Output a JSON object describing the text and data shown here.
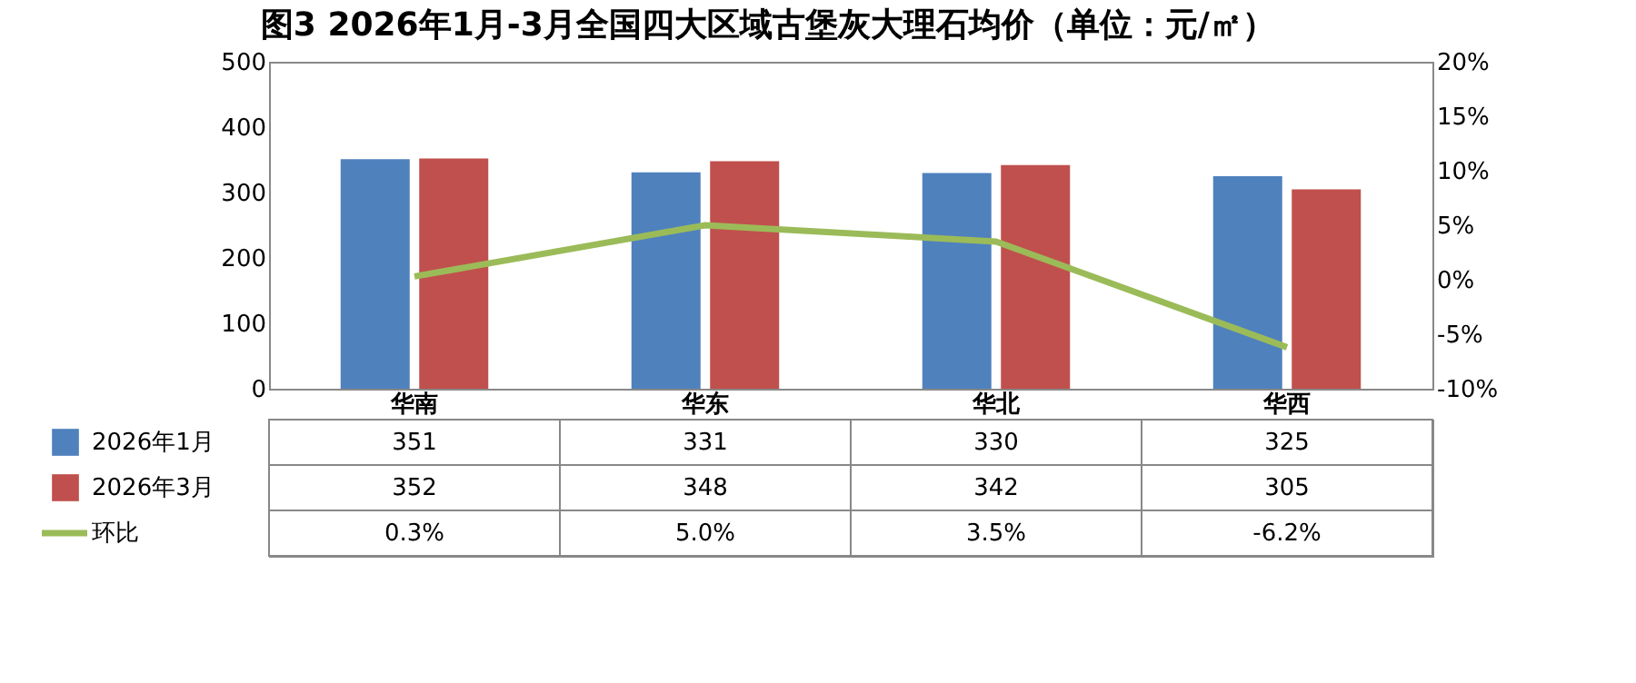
{
  "chart_data": {
    "type": "bar",
    "title": "图3 2026年1月-3月全国四大区域古堡灰大理石均价（单位：元/㎡）",
    "categories": [
      "华南",
      "华东",
      "华北",
      "华西"
    ],
    "series": [
      {
        "name": "2026年1月",
        "color": "#4f81bd",
        "values": [
          351,
          331,
          330,
          325
        ],
        "value_labels": [
          "351",
          "331",
          "330",
          "325"
        ]
      },
      {
        "name": "2026年3月",
        "color": "#c0504d",
        "values": [
          352,
          348,
          342,
          305
        ],
        "value_labels": [
          "352",
          "348",
          "342",
          "305"
        ]
      },
      {
        "name": "环比",
        "type": "line",
        "axis": "y2",
        "color": "#9bbb59",
        "values": [
          0.3,
          5.0,
          3.5,
          -6.2
        ],
        "value_labels": [
          "0.3%",
          "5.0%",
          "3.5%",
          "-6.2%"
        ]
      }
    ],
    "ylim": [
      0,
      500
    ],
    "yticks": [
      0,
      100,
      200,
      300,
      400,
      500
    ],
    "y2lim": [
      -10,
      20
    ],
    "y2ticks": [
      {
        "value": -10,
        "label": "-10%"
      },
      {
        "value": -5,
        "label": "-5%"
      },
      {
        "value": 0,
        "label": "0%"
      },
      {
        "value": 5,
        "label": "5%"
      },
      {
        "value": 10,
        "label": "10%"
      },
      {
        "value": 15,
        "label": "15%"
      },
      {
        "value": 20,
        "label": "20%"
      }
    ],
    "grid": false,
    "legend": "bottom",
    "marker": "none"
  }
}
